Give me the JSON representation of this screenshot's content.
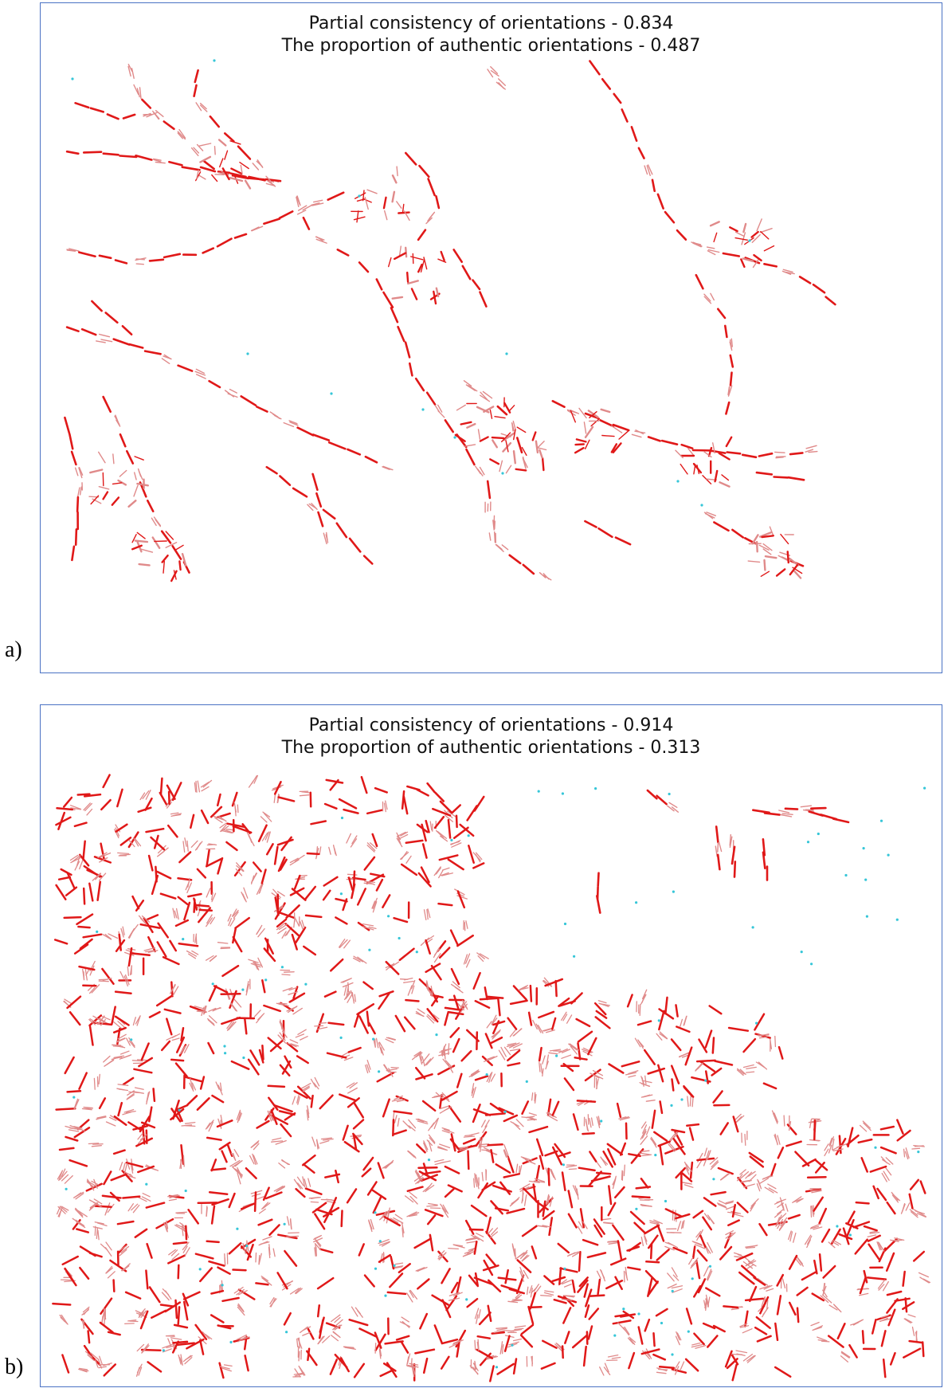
{
  "colors": {
    "authentic_segment": "#e01818",
    "faded_segment": "#e08a8a",
    "point_marker": "#36c6d8",
    "frame_border": "#4a72c4"
  },
  "panels": [
    {
      "label": "a)",
      "title_line1": "Partial consistency of orientations - 0.834",
      "title_line2": "The proportion of authentic orientations - 0.487"
    },
    {
      "label": "b)",
      "title_line1": "Partial consistency of orientations - 0.914",
      "title_line2": "The proportion of authentic orientations - 0.313"
    }
  ]
}
